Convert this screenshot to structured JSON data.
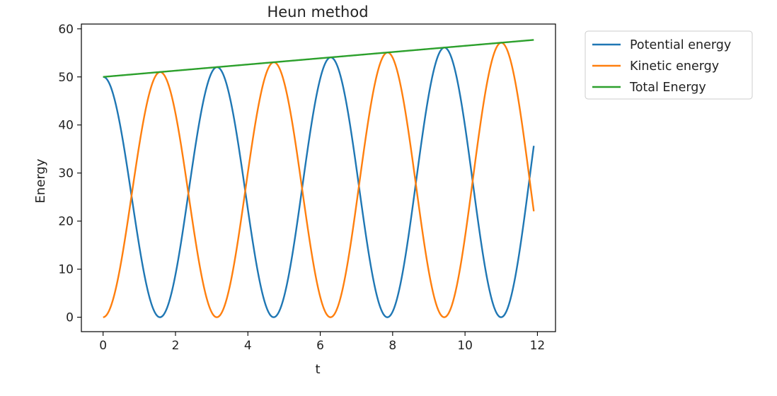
{
  "chart_data": {
    "type": "line",
    "title": "Heun method",
    "xlabel": "t",
    "ylabel": "Energy",
    "xlim": [
      -0.6,
      12.5
    ],
    "ylim": [
      -3,
      61
    ],
    "xticks": [
      0,
      2,
      4,
      6,
      8,
      10,
      12
    ],
    "yticks": [
      0,
      10,
      20,
      30,
      40,
      50,
      60
    ],
    "legend_position": "outside-right-top",
    "t_range": [
      0,
      11.9
    ],
    "series": [
      {
        "name": "Potential energy",
        "color": "#1f77b4",
        "description": "cos^2 oscillation, peak grows with total energy",
        "peaks_t": [
          0,
          3.14,
          6.28,
          9.42
        ],
        "end_value": 34.5
      },
      {
        "name": "Kinetic energy",
        "color": "#ff7f0e",
        "description": "sin^2 oscillation, peak grows with total energy",
        "peaks_t": [
          1.57,
          4.71,
          7.85,
          11.0
        ],
        "end_value": 23.2
      },
      {
        "name": "Total Energy",
        "color": "#2ca02c",
        "start_value": 50.0,
        "end_value": 57.7
      }
    ]
  }
}
